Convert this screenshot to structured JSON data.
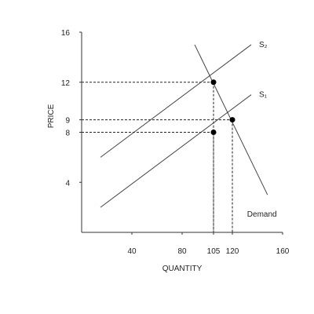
{
  "chart_data": {
    "type": "line",
    "xlabel": "QUANTITY",
    "ylabel": "PRICE",
    "xlim": [
      0,
      160
    ],
    "ylim": [
      0,
      16
    ],
    "x_ticks": [
      {
        "value": 40,
        "label": "40"
      },
      {
        "value": 80,
        "label": "80"
      },
      {
        "value": 105,
        "label": "105"
      },
      {
        "value": 120,
        "label": "120"
      },
      {
        "value": 160,
        "label": "160"
      }
    ],
    "y_ticks": [
      {
        "value": 4,
        "label": "4"
      },
      {
        "value": 8,
        "label": "8"
      },
      {
        "value": 9,
        "label": "9"
      },
      {
        "value": 12,
        "label": "12"
      },
      {
        "value": 16,
        "label": "16"
      }
    ],
    "series": [
      {
        "name": "S₂",
        "points": [
          [
            15,
            6
          ],
          [
            135,
            15
          ]
        ]
      },
      {
        "name": "S₁",
        "points": [
          [
            15,
            2
          ],
          [
            135,
            11
          ]
        ]
      },
      {
        "name": "Demand",
        "points": [
          [
            90,
            15
          ],
          [
            148,
            3
          ]
        ]
      }
    ],
    "equilibria": [
      {
        "x": 105,
        "y": 12
      },
      {
        "x": 105,
        "y": 8
      },
      {
        "x": 120,
        "y": 9
      }
    ],
    "grid": false,
    "line_color": "#444444",
    "axis_color": "#333333"
  }
}
